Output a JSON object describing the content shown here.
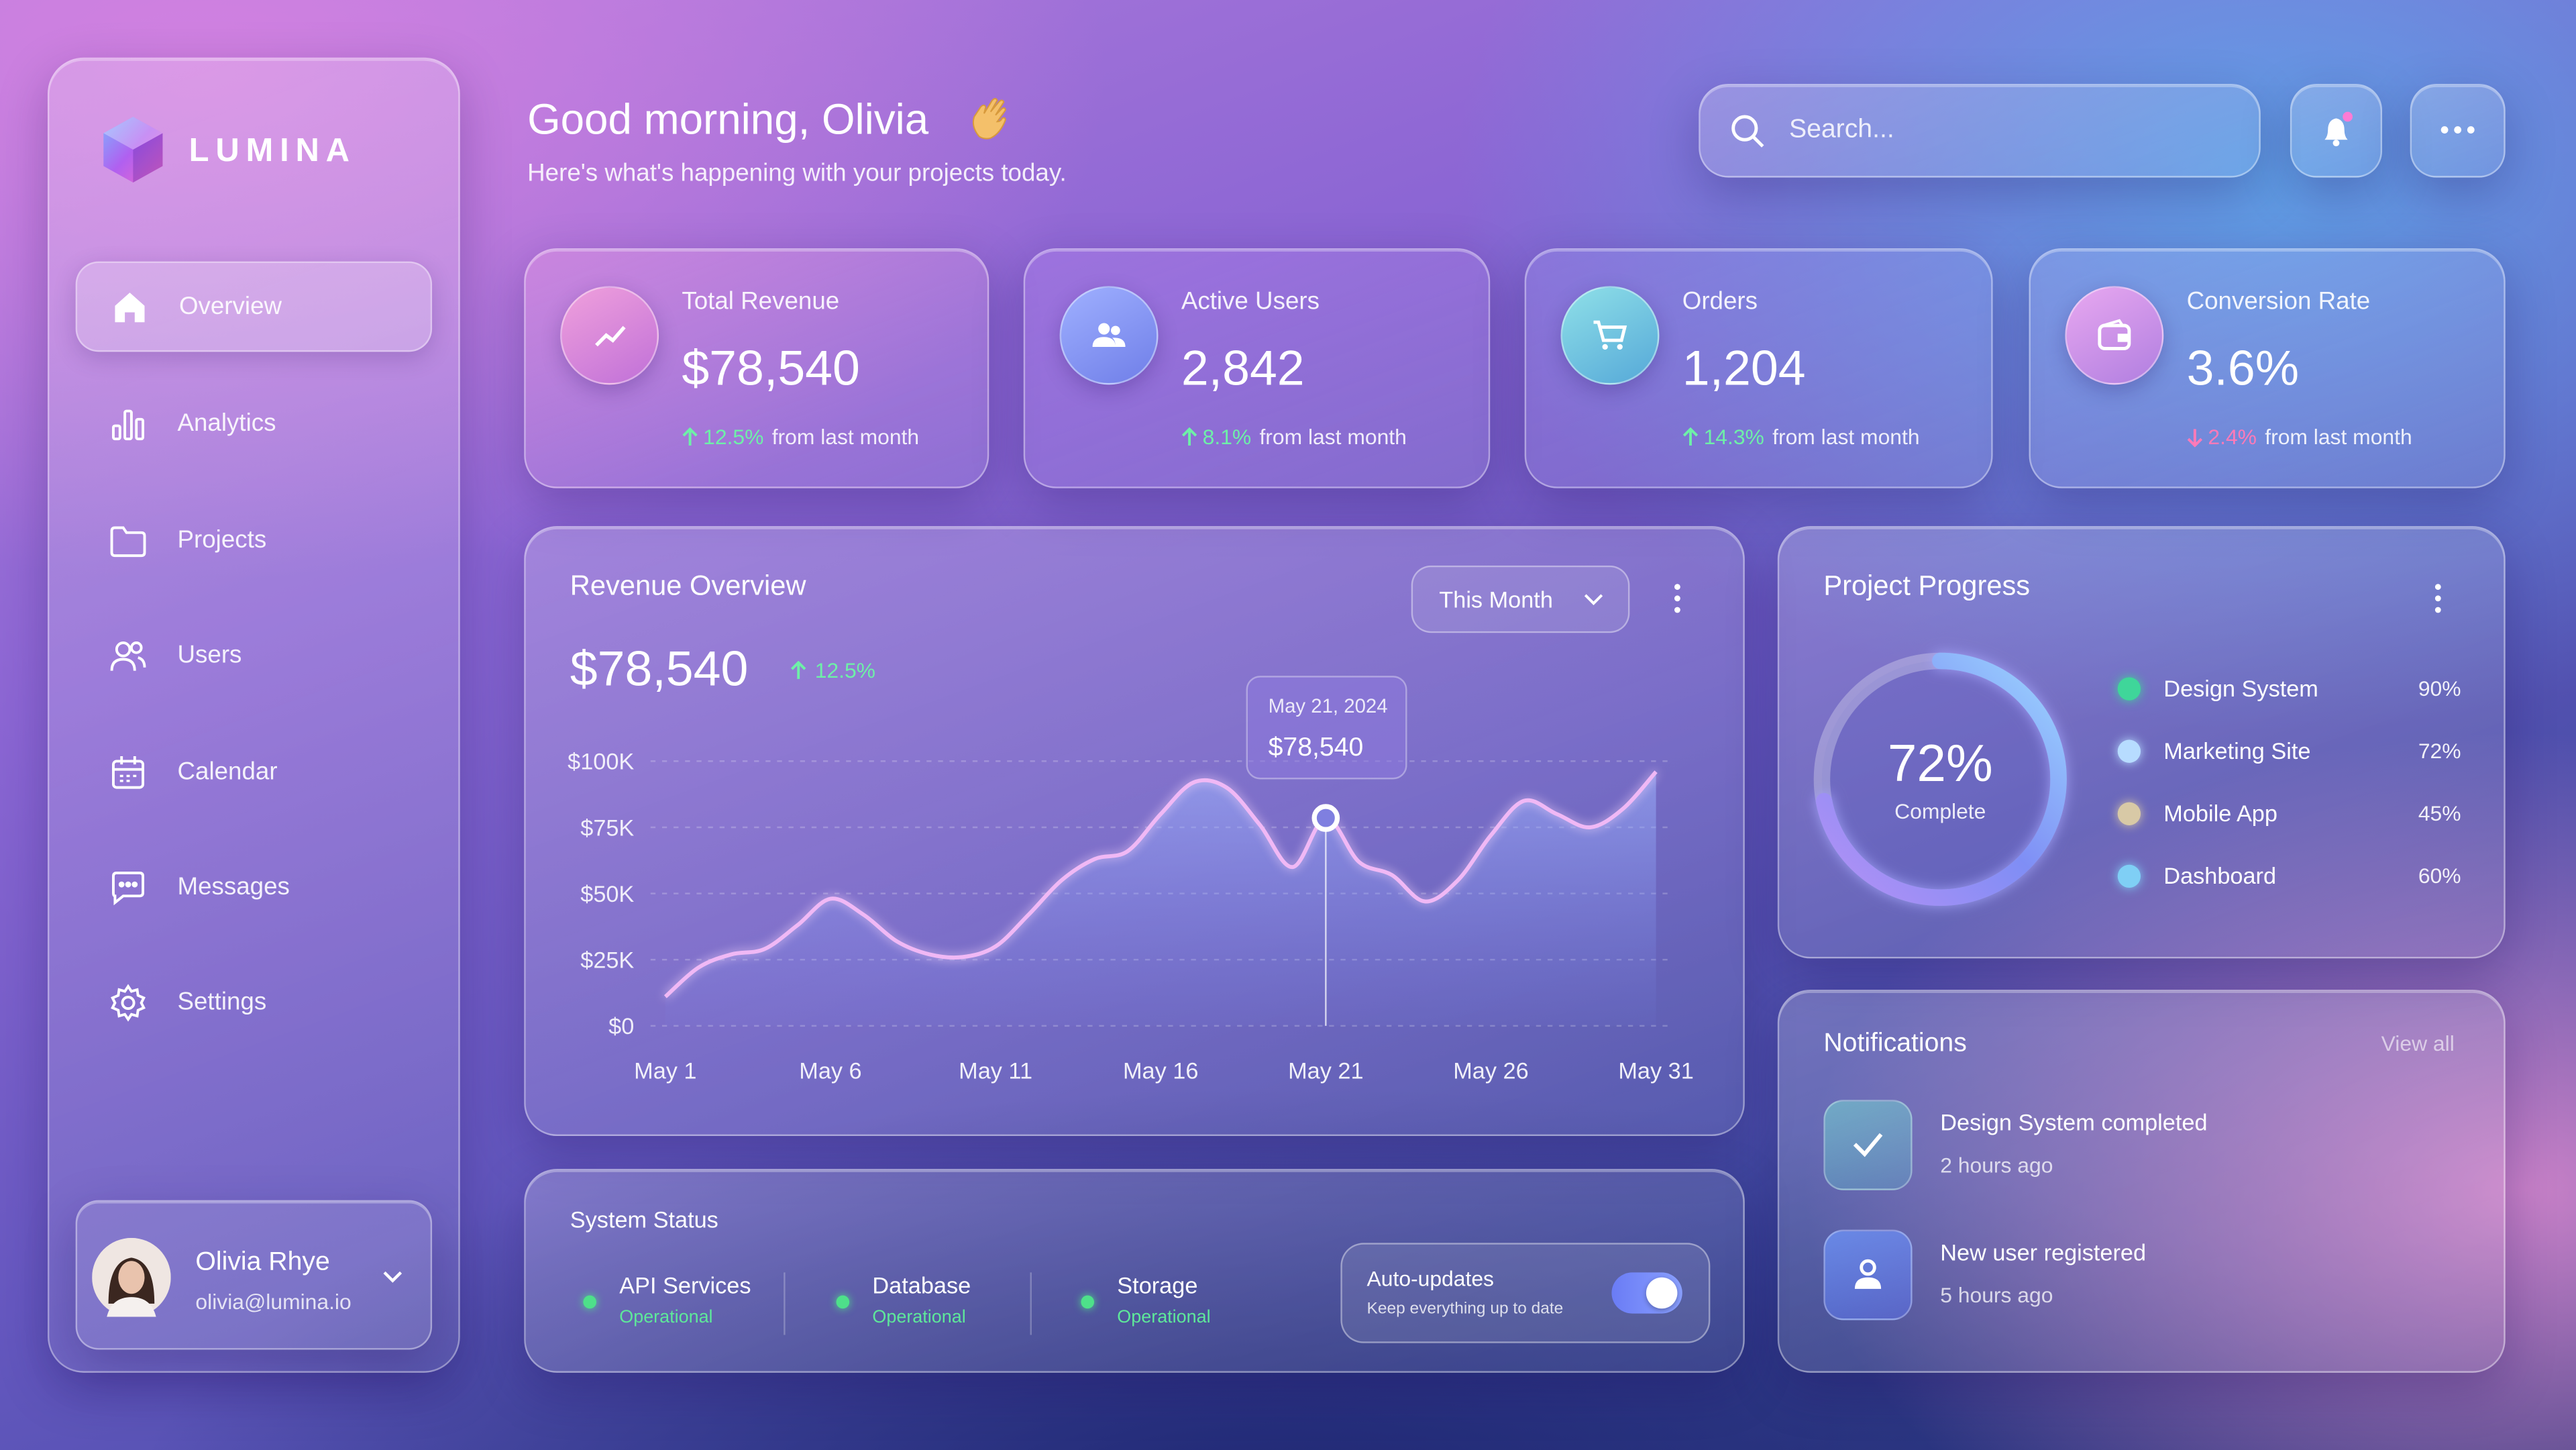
{
  "brand": {
    "name": "LUMINA"
  },
  "nav": {
    "items": [
      {
        "label": "Overview",
        "active": true
      },
      {
        "label": "Analytics",
        "active": false
      },
      {
        "label": "Projects",
        "active": false
      },
      {
        "label": "Users",
        "active": false
      },
      {
        "label": "Calendar",
        "active": false
      },
      {
        "label": "Messages",
        "active": false
      },
      {
        "label": "Settings",
        "active": false
      }
    ]
  },
  "user": {
    "name": "Olivia Rhye",
    "email": "olivia@lumina.io"
  },
  "header": {
    "title": "Good morning, Olivia",
    "subtitle": "Here's what's happening with your projects today.",
    "search_placeholder": "Search..."
  },
  "stats": [
    {
      "label": "Total Revenue",
      "value": "$78,540",
      "change": "12.5%",
      "trend": "up",
      "note": "from last month"
    },
    {
      "label": "Active Users",
      "value": "2,842",
      "change": "8.1%",
      "trend": "up",
      "note": "from last month"
    },
    {
      "label": "Orders",
      "value": "1,204",
      "change": "14.3%",
      "trend": "up",
      "note": "from last month"
    },
    {
      "label": "Conversion Rate",
      "value": "3.6%",
      "change": "2.4%",
      "trend": "down",
      "note": "from last month"
    }
  ],
  "revenue": {
    "title": "Revenue Overview",
    "total": "$78,540",
    "change": "12.5%",
    "period": "This Month",
    "tooltip": {
      "date": "May 21, 2024",
      "value": "$78,540"
    },
    "chart": {
      "type": "line",
      "categories": [
        "May 1",
        null,
        null,
        null,
        null,
        "May 6",
        null,
        null,
        null,
        null,
        "May 11",
        null,
        null,
        null,
        null,
        "May 16",
        null,
        null,
        null,
        null,
        "May 21",
        null,
        null,
        null,
        null,
        "May 26",
        null,
        null,
        null,
        null,
        "May 31"
      ],
      "values": [
        11000,
        22000,
        27000,
        29000,
        38000,
        48000,
        42000,
        32000,
        27000,
        26000,
        30000,
        42000,
        55000,
        63000,
        66000,
        80000,
        92000,
        90000,
        76000,
        60000,
        78540,
        62000,
        57000,
        47000,
        55000,
        72000,
        85000,
        80000,
        75000,
        82000,
        96000
      ],
      "color": "#f0b8f5",
      "ylim": [
        0,
        100000
      ],
      "yticks": [
        {
          "value": 0,
          "label": "$0"
        },
        {
          "value": 25000,
          "label": "$25K"
        },
        {
          "value": 50000,
          "label": "$50K"
        },
        {
          "value": 75000,
          "label": "$75K"
        },
        {
          "value": 100000,
          "label": "$100K"
        }
      ],
      "grid": true
    }
  },
  "progress": {
    "title": "Project Progress",
    "value": 72,
    "value_label": "72%",
    "caption": "Complete",
    "items": [
      {
        "name": "Design System",
        "value": "90%",
        "color": "#3fd69a"
      },
      {
        "name": "Marketing Site",
        "value": "72%",
        "color": "#b7dcff"
      },
      {
        "name": "Mobile App",
        "value": "45%",
        "color": "#d8c9a6"
      },
      {
        "name": "Dashboard",
        "value": "60%",
        "color": "#7fcff5"
      }
    ]
  },
  "notifications": {
    "title": "Notifications",
    "view_all": "View all",
    "items": [
      {
        "text": "Design System completed",
        "time": "2 hours ago"
      },
      {
        "text": "New user registered",
        "time": "5 hours ago"
      }
    ]
  },
  "system": {
    "title": "System Status",
    "items": [
      {
        "name": "API Services",
        "status": "Operational"
      },
      {
        "name": "Database",
        "status": "Operational"
      },
      {
        "name": "Storage",
        "status": "Operational"
      }
    ],
    "auto_updates": {
      "label": "Auto-updates",
      "description": "Keep everything up to date",
      "enabled": true
    }
  }
}
